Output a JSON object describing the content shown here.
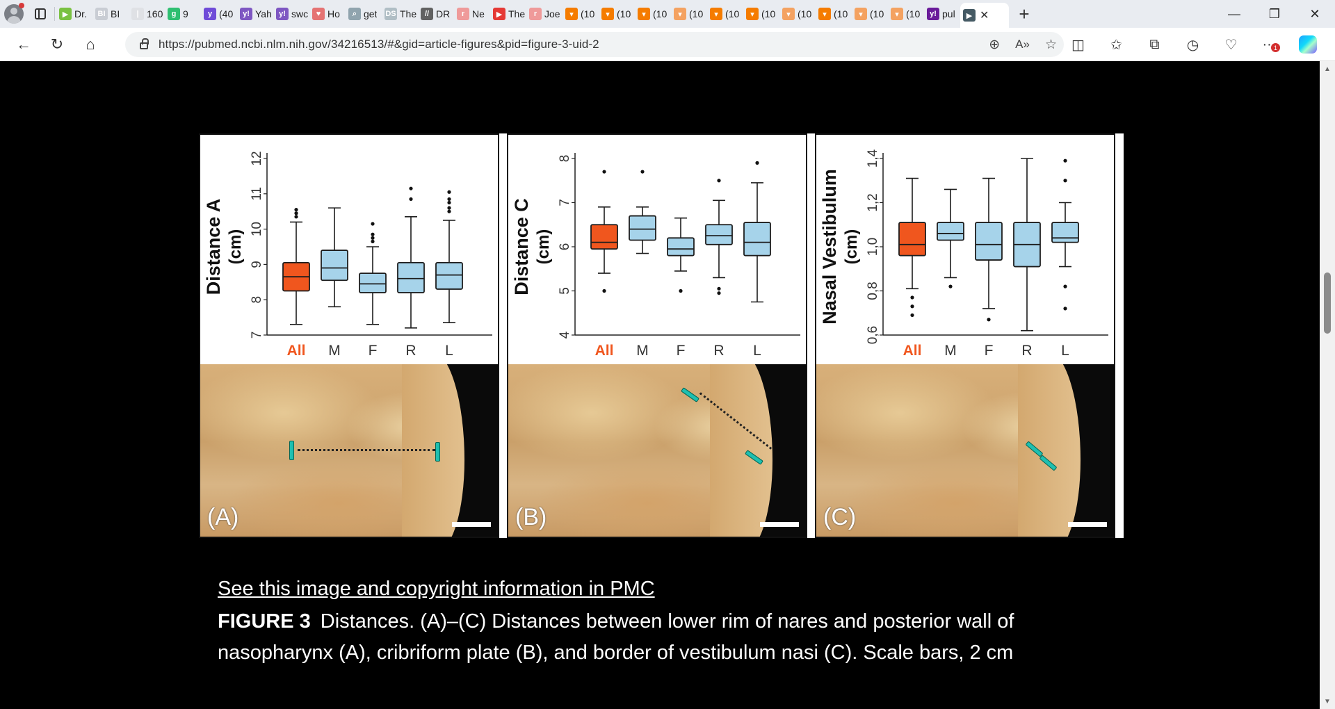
{
  "browser": {
    "tabs": [
      {
        "label": "Dr.",
        "fav": "▶",
        "color": "#7ac142"
      },
      {
        "label": "BI",
        "fav": "BI",
        "color": "#c9cdd4"
      },
      {
        "label": "160",
        "fav": "|",
        "color": "#dfe1e5"
      },
      {
        "label": "9",
        "fav": "g",
        "color": "#2fbf71"
      },
      {
        "label": "(40",
        "fav": "y",
        "color": "#6f4bd8"
      },
      {
        "label": "Yah",
        "fav": "y!",
        "color": "#7e57c2"
      },
      {
        "label": "swc",
        "fav": "y!",
        "color": "#7e57c2"
      },
      {
        "label": "Ho",
        "fav": "♥",
        "color": "#e57373"
      },
      {
        "label": "get",
        "fav": "⌕",
        "color": "#90a4ae"
      },
      {
        "label": "The",
        "fav": "DS",
        "color": "#b0bec5"
      },
      {
        "label": "DR",
        "fav": "//",
        "color": "#616161"
      },
      {
        "label": "Ne",
        "fav": "r",
        "color": "#ef9a9a"
      },
      {
        "label": "The",
        "fav": "▶",
        "color": "#e53935"
      },
      {
        "label": "Joe",
        "fav": "r",
        "color": "#ef9a9a"
      },
      {
        "label": "(10",
        "fav": "▾",
        "color": "#f57c00"
      },
      {
        "label": "(10",
        "fav": "▾",
        "color": "#f57c00"
      },
      {
        "label": "(10",
        "fav": "▾",
        "color": "#f57c00"
      },
      {
        "label": "(10",
        "fav": "▾",
        "color": "#f4a261"
      },
      {
        "label": "(10",
        "fav": "▾",
        "color": "#f57c00"
      },
      {
        "label": "(10",
        "fav": "▾",
        "color": "#f57c00"
      },
      {
        "label": "(10",
        "fav": "▾",
        "color": "#f4a261"
      },
      {
        "label": "(10",
        "fav": "▾",
        "color": "#f57c00"
      },
      {
        "label": "(10",
        "fav": "▾",
        "color": "#f4a261"
      },
      {
        "label": "(10",
        "fav": "▾",
        "color": "#f4a261"
      },
      {
        "label": "pul",
        "fav": "y!",
        "color": "#6a1b9a"
      }
    ],
    "active_tab": {
      "label": "",
      "fav": "▶",
      "color": "#455a64"
    },
    "url": "https://pubmed.ncbi.nlm.nih.gov/34216513/#&gid=article-figures&pid=figure-3-uid-2",
    "extension_badge": "1"
  },
  "figure": {
    "panels": [
      {
        "id": "A",
        "photo_label": "(A)",
        "ylabel": "Distance A",
        "yunit": "(cm)",
        "yticks": [
          "7",
          "8",
          "9",
          "10",
          "11",
          "12"
        ],
        "ylim": [
          7,
          12
        ],
        "categories": [
          "All",
          "M",
          "F",
          "R",
          "L"
        ],
        "boxes": [
          {
            "q1": 8.25,
            "median": 8.65,
            "q3": 9.05,
            "wlow": 7.3,
            "whigh": 10.2,
            "outliers_high": [
              10.35,
              10.45,
              10.55
            ],
            "outliers_low": []
          },
          {
            "q1": 8.55,
            "median": 8.9,
            "q3": 9.4,
            "wlow": 7.8,
            "whigh": 10.6,
            "outliers_high": [],
            "outliers_low": []
          },
          {
            "q1": 8.2,
            "median": 8.45,
            "q3": 8.75,
            "wlow": 7.3,
            "whigh": 9.5,
            "outliers_high": [
              9.65,
              9.75,
              9.85,
              10.15
            ],
            "outliers_low": []
          },
          {
            "q1": 8.2,
            "median": 8.6,
            "q3": 9.05,
            "wlow": 7.2,
            "whigh": 10.35,
            "outliers_high": [
              10.85,
              11.15
            ],
            "outliers_low": []
          },
          {
            "q1": 8.3,
            "median": 8.7,
            "q3": 9.05,
            "wlow": 7.35,
            "whigh": 10.25,
            "outliers_high": [
              10.5,
              10.6,
              10.75,
              10.85,
              11.05
            ],
            "outliers_low": []
          }
        ]
      },
      {
        "id": "B",
        "photo_label": "(B)",
        "ylabel": "Distance C",
        "yunit": "(cm)",
        "yticks": [
          "4",
          "5",
          "6",
          "7",
          "8"
        ],
        "ylim": [
          4,
          8
        ],
        "categories": [
          "All",
          "M",
          "F",
          "R",
          "L"
        ],
        "boxes": [
          {
            "q1": 5.95,
            "median": 6.1,
            "q3": 6.5,
            "wlow": 5.4,
            "whigh": 6.9,
            "outliers_high": [
              7.7
            ],
            "outliers_low": [
              5.0
            ]
          },
          {
            "q1": 6.15,
            "median": 6.4,
            "q3": 6.7,
            "wlow": 5.85,
            "whigh": 6.9,
            "outliers_high": [
              7.7
            ],
            "outliers_low": []
          },
          {
            "q1": 5.8,
            "median": 5.95,
            "q3": 6.2,
            "wlow": 5.45,
            "whigh": 6.65,
            "outliers_high": [],
            "outliers_low": [
              5.0
            ]
          },
          {
            "q1": 6.05,
            "median": 6.25,
            "q3": 6.5,
            "wlow": 5.3,
            "whigh": 7.05,
            "outliers_high": [
              7.5
            ],
            "outliers_low": [
              4.95,
              5.05
            ]
          },
          {
            "q1": 5.8,
            "median": 6.1,
            "q3": 6.55,
            "wlow": 4.75,
            "whigh": 7.45,
            "outliers_high": [
              7.9
            ],
            "outliers_low": []
          }
        ]
      },
      {
        "id": "C",
        "photo_label": "(C)",
        "ylabel": "Nasal Vestibulum",
        "yunit": "(cm)",
        "yticks": [
          "0,6",
          "0,8",
          "1,0",
          "1,2",
          "1,4"
        ],
        "ylim": [
          0.6,
          1.4
        ],
        "categories": [
          "All",
          "M",
          "F",
          "R",
          "L"
        ],
        "boxes": [
          {
            "q1": 0.96,
            "median": 1.01,
            "q3": 1.11,
            "wlow": 0.81,
            "whigh": 1.31,
            "outliers_high": [],
            "outliers_low": [
              0.77,
              0.73,
              0.69
            ]
          },
          {
            "q1": 1.03,
            "median": 1.06,
            "q3": 1.11,
            "wlow": 0.86,
            "whigh": 1.26,
            "outliers_high": [],
            "outliers_low": [
              0.82
            ]
          },
          {
            "q1": 0.94,
            "median": 1.01,
            "q3": 1.11,
            "wlow": 0.72,
            "whigh": 1.31,
            "outliers_high": [],
            "outliers_low": [
              0.67
            ]
          },
          {
            "q1": 0.91,
            "median": 1.01,
            "q3": 1.11,
            "wlow": 0.62,
            "whigh": 1.4,
            "outliers_high": [],
            "outliers_low": []
          },
          {
            "q1": 1.02,
            "median": 1.04,
            "q3": 1.11,
            "wlow": 0.91,
            "whigh": 1.2,
            "outliers_high": [
              1.3,
              1.39
            ],
            "outliers_low": [
              0.82,
              0.72
            ]
          }
        ]
      }
    ],
    "colors": {
      "all": "#f0561e",
      "group": "#a6d3ea",
      "stroke": "#1d1d1d"
    },
    "pmc_link": "See this image and copyright information in PMC",
    "label": "FIGURE 3",
    "caption": "Distances. (A)–(C) Distances between lower rim of nares and posterior wall of nasopharynx (A), cribriform plate (B), and border of vestibulum nasi (C). Scale bars, 2 cm"
  }
}
